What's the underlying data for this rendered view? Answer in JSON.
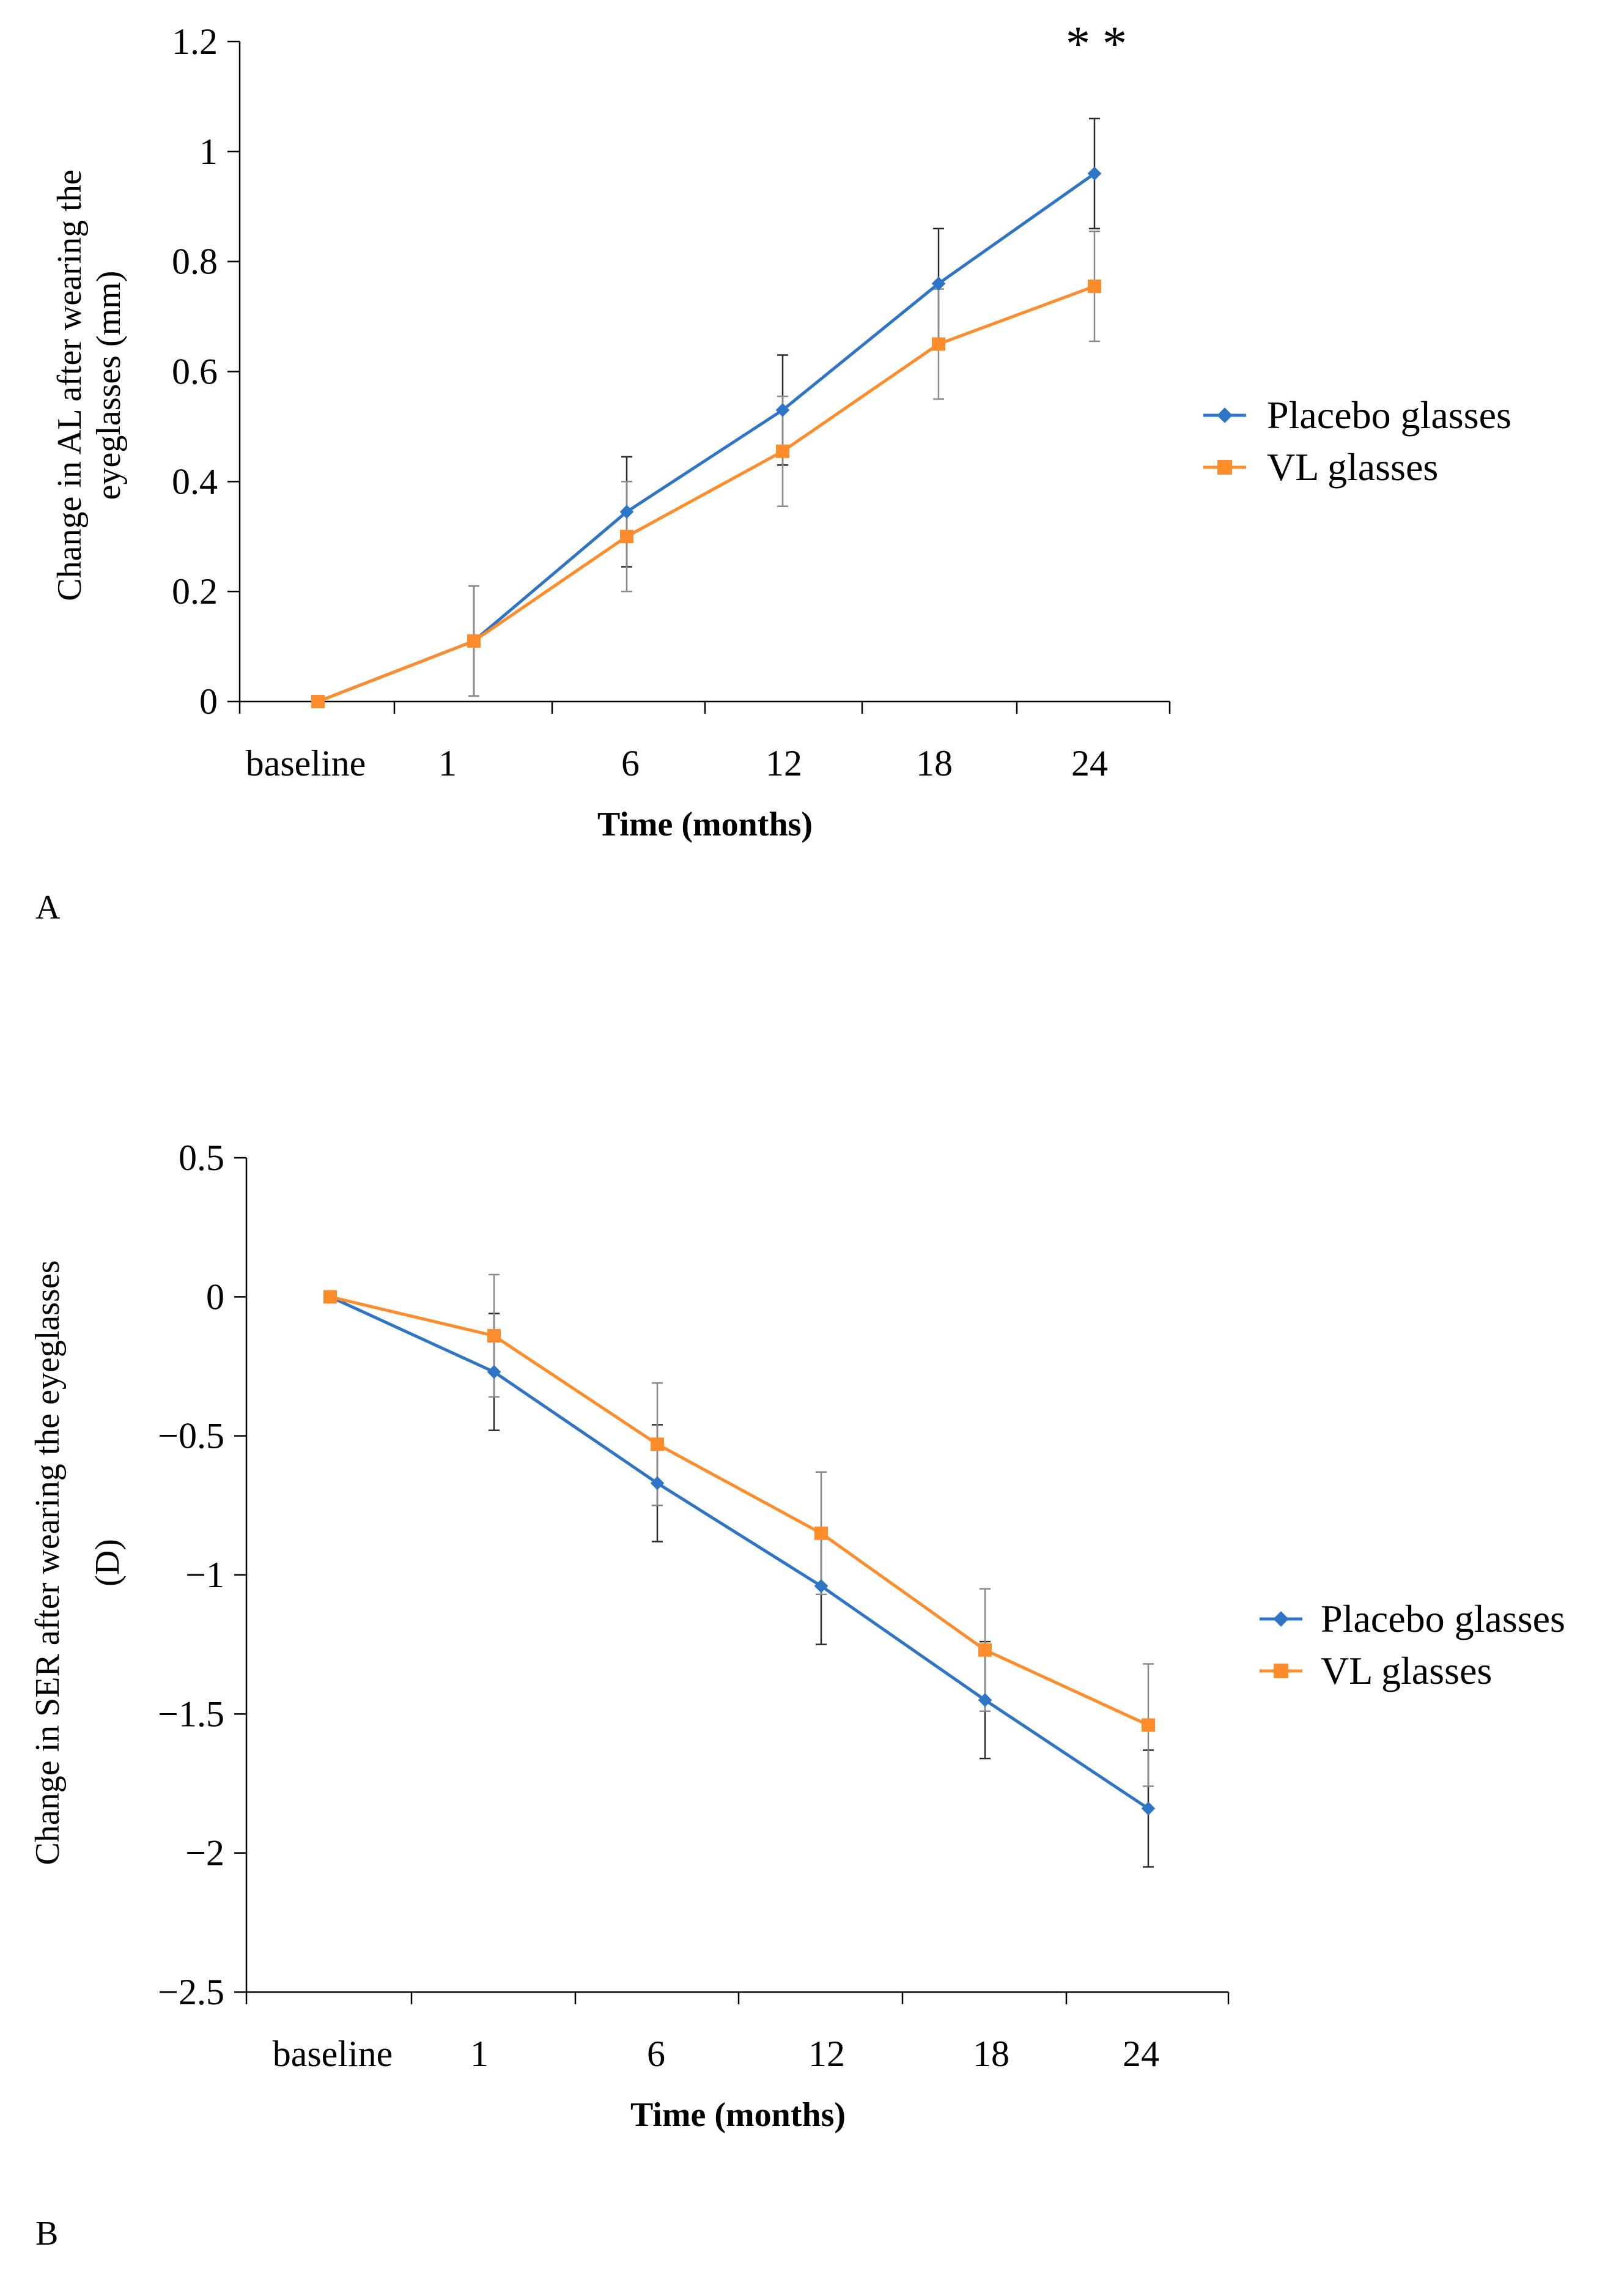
{
  "chart_data": [
    {
      "type": "line",
      "panel": "A",
      "title": "",
      "xlabel": "Time (months)",
      "ylabel": "Change in AL after wearing the eyeglasses (mm)",
      "ylabel_lines": [
        "Change in AL after wearing the",
        "eyeglasses (mm)"
      ],
      "categories": [
        "baseline",
        "1",
        "6",
        "12",
        "18",
        "24"
      ],
      "ylim": [
        0,
        1.2
      ],
      "yticks": [
        "0",
        "0.2",
        "0.4",
        "0.6",
        "0.8",
        "1",
        "1.2"
      ],
      "ytick_values": [
        0,
        0.2,
        0.4,
        0.6,
        0.8,
        1,
        1.2
      ],
      "legend_position": "right",
      "annotation": "* *",
      "series": [
        {
          "name": "Placebo glasses",
          "color": "#2e75c6",
          "marker": "diamond",
          "values": [
            0,
            0.11,
            0.345,
            0.53,
            0.76,
            0.96
          ],
          "errors": [
            0,
            0.1,
            0.1,
            0.1,
            0.1,
            0.1
          ],
          "error_color": "#2a2a2a"
        },
        {
          "name": "VL glasses",
          "color": "#ff8c2b",
          "marker": "square",
          "values": [
            0,
            0.11,
            0.3,
            0.455,
            0.65,
            0.755
          ],
          "errors": [
            0,
            0.1,
            0.1,
            0.1,
            0.1,
            0.1
          ],
          "error_color": "#8a8a8a"
        }
      ]
    },
    {
      "type": "line",
      "panel": "B",
      "title": "",
      "xlabel": "Time (months)",
      "ylabel": "Change in SER after wearing the eyeglasses (D)",
      "ylabel_lines": [
        "Change in SER  after wearing the eyeglasses",
        "(D)"
      ],
      "categories": [
        "baseline",
        "1",
        "6",
        "12",
        "18",
        "24"
      ],
      "ylim": [
        -2.5,
        0.5
      ],
      "yticks": [
        "0.5",
        "0",
        "−0.5",
        "−1",
        "−1.5",
        "−2",
        "−2.5"
      ],
      "ytick_values": [
        0.5,
        0,
        -0.5,
        -1,
        -1.5,
        -2,
        -2.5
      ],
      "legend_position": "right",
      "series": [
        {
          "name": "Placebo glasses",
          "color": "#2e75c6",
          "marker": "diamond",
          "values": [
            0,
            -0.27,
            -0.67,
            -1.04,
            -1.45,
            -1.84
          ],
          "errors": [
            0,
            0.21,
            0.21,
            0.21,
            0.21,
            0.21
          ],
          "error_color": "#2a2a2a"
        },
        {
          "name": "VL glasses",
          "color": "#ff8c2b",
          "marker": "square",
          "values": [
            0,
            -0.14,
            -0.53,
            -0.85,
            -1.27,
            -1.54
          ],
          "errors": [
            0,
            0.22,
            0.22,
            0.22,
            0.22,
            0.22
          ],
          "error_color": "#8a8a8a"
        }
      ]
    }
  ]
}
